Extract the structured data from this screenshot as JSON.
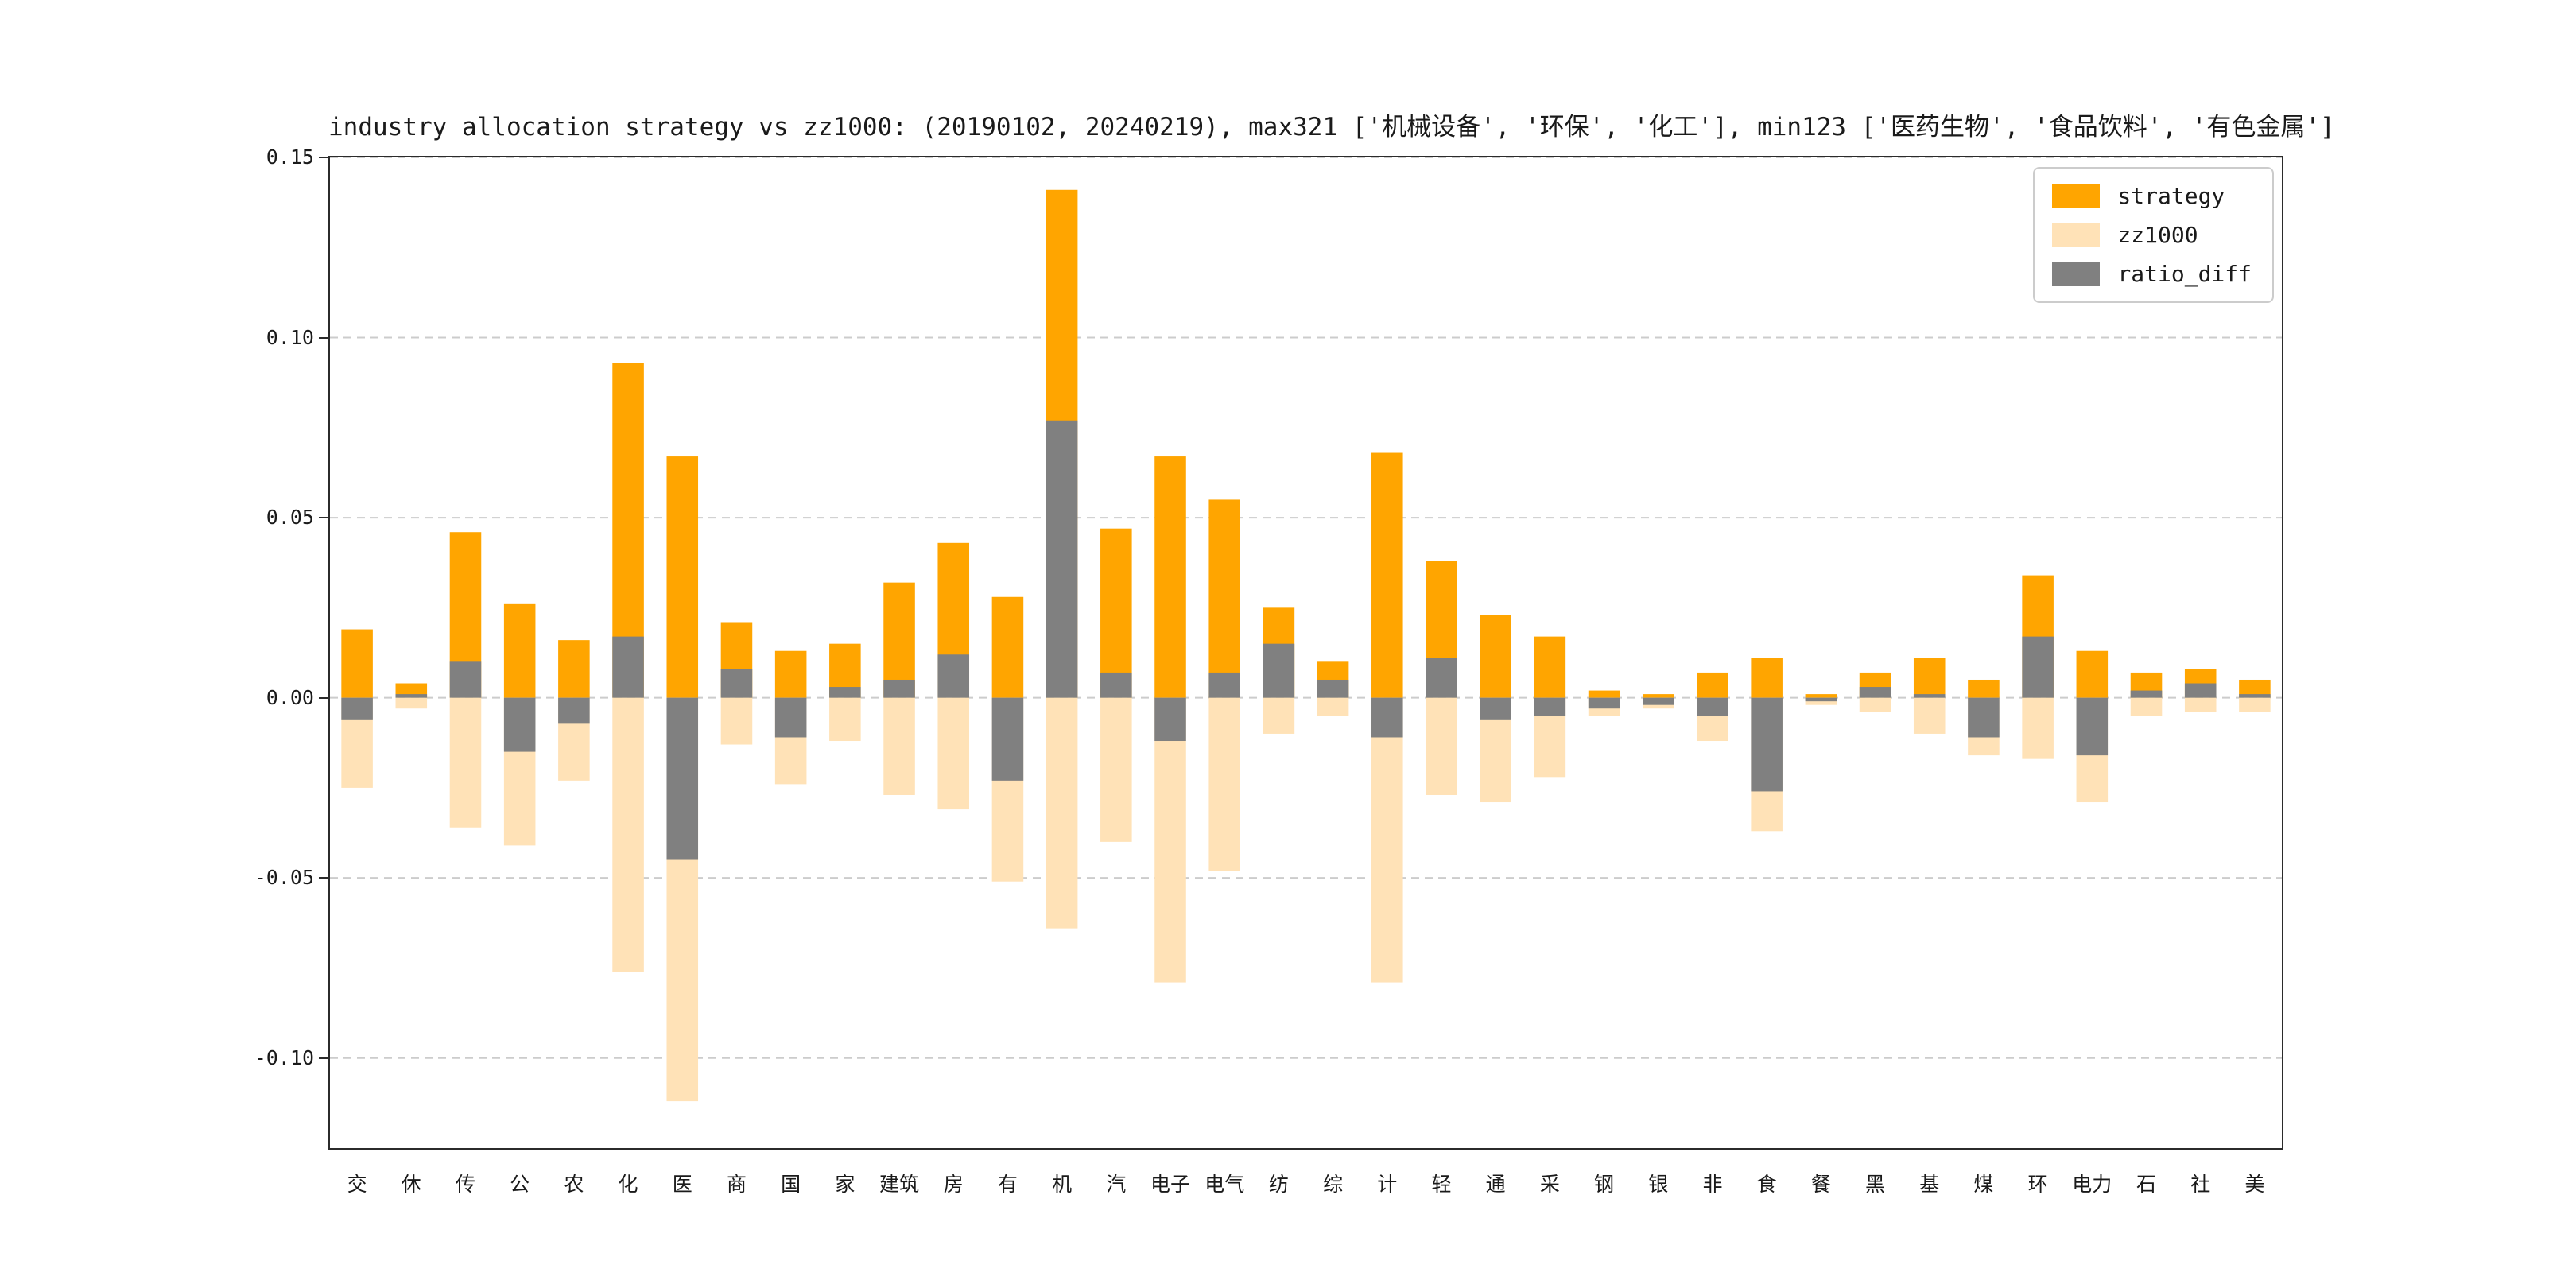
{
  "title": "industry allocation strategy vs zz1000: (20190102, 20240219), max321 ['机械设备', '环保', '化工'], min123 ['医药生物', '食品饮料', '有色金属']",
  "colors": {
    "strategy": "#ffa500",
    "zz1000": "#ffe2b7",
    "ratio_diff": "#808080",
    "grid": "#cccccc",
    "spine": "#2b2b2b",
    "text": "#1a1a1a"
  },
  "legend": {
    "position": "upper-right",
    "items": [
      "strategy",
      "zz1000",
      "ratio_diff"
    ]
  },
  "chart_data": {
    "type": "bar",
    "title": "industry allocation strategy vs zz1000: (20190102, 20240219), max321 ['机械设备', '环保', '化工'], min123 ['医药生物', '食品饮料', '有色金属']",
    "xlabel": "",
    "ylabel": "",
    "ylim": [
      -0.125,
      0.15
    ],
    "grid": "horizontal-dashed",
    "legend_position": "upper-right",
    "yticks": [
      {
        "value": 0.15,
        "label": "0.15"
      },
      {
        "value": 0.1,
        "label": "0.10"
      },
      {
        "value": 0.05,
        "label": "0.05"
      },
      {
        "value": 0.0,
        "label": "0.00"
      },
      {
        "value": -0.05,
        "label": "-0.05"
      },
      {
        "value": -0.1,
        "label": "-0.10"
      }
    ],
    "categories": [
      "交",
      "休",
      "传",
      "公",
      "农",
      "化",
      "医",
      "商",
      "国",
      "家",
      "建筑",
      "房",
      "有",
      "机",
      "汽",
      "电子",
      "电气",
      "纺",
      "综",
      "计",
      "轻",
      "通",
      "采",
      "钢",
      "银",
      "非",
      "食",
      "餐",
      "黑",
      "基",
      "煤",
      "环",
      "电力",
      "石",
      "社",
      "美"
    ],
    "series": [
      {
        "name": "strategy",
        "color": "#ffa500",
        "values": [
          0.019,
          0.004,
          0.046,
          0.026,
          0.016,
          0.093,
          0.067,
          0.021,
          0.013,
          0.015,
          0.032,
          0.043,
          0.028,
          0.141,
          0.047,
          0.067,
          0.055,
          0.025,
          0.01,
          0.068,
          0.038,
          0.023,
          0.017,
          0.002,
          0.001,
          0.007,
          0.011,
          0.001,
          0.007,
          0.011,
          0.005,
          0.034,
          0.013,
          0.007,
          0.008,
          0.005
        ]
      },
      {
        "name": "zz1000",
        "color": "#ffe2b7",
        "values": [
          -0.025,
          -0.003,
          -0.036,
          -0.041,
          -0.023,
          -0.076,
          -0.112,
          -0.013,
          -0.024,
          -0.012,
          -0.027,
          -0.031,
          -0.051,
          -0.064,
          -0.04,
          -0.079,
          -0.048,
          -0.01,
          -0.005,
          -0.079,
          -0.027,
          -0.029,
          -0.022,
          -0.005,
          -0.003,
          -0.012,
          -0.037,
          -0.002,
          -0.004,
          -0.01,
          -0.016,
          -0.017,
          -0.029,
          -0.005,
          -0.004,
          -0.004
        ]
      },
      {
        "name": "ratio_diff",
        "color": "#808080",
        "values": [
          -0.006,
          0.001,
          0.01,
          -0.015,
          -0.007,
          0.017,
          -0.045,
          0.008,
          -0.011,
          0.003,
          0.005,
          0.012,
          -0.023,
          0.077,
          0.007,
          -0.012,
          0.007,
          0.015,
          0.005,
          -0.011,
          0.011,
          -0.006,
          -0.005,
          -0.003,
          -0.002,
          -0.005,
          -0.026,
          -0.001,
          0.003,
          0.001,
          -0.011,
          0.017,
          -0.016,
          0.002,
          0.004,
          0.001
        ]
      }
    ]
  }
}
